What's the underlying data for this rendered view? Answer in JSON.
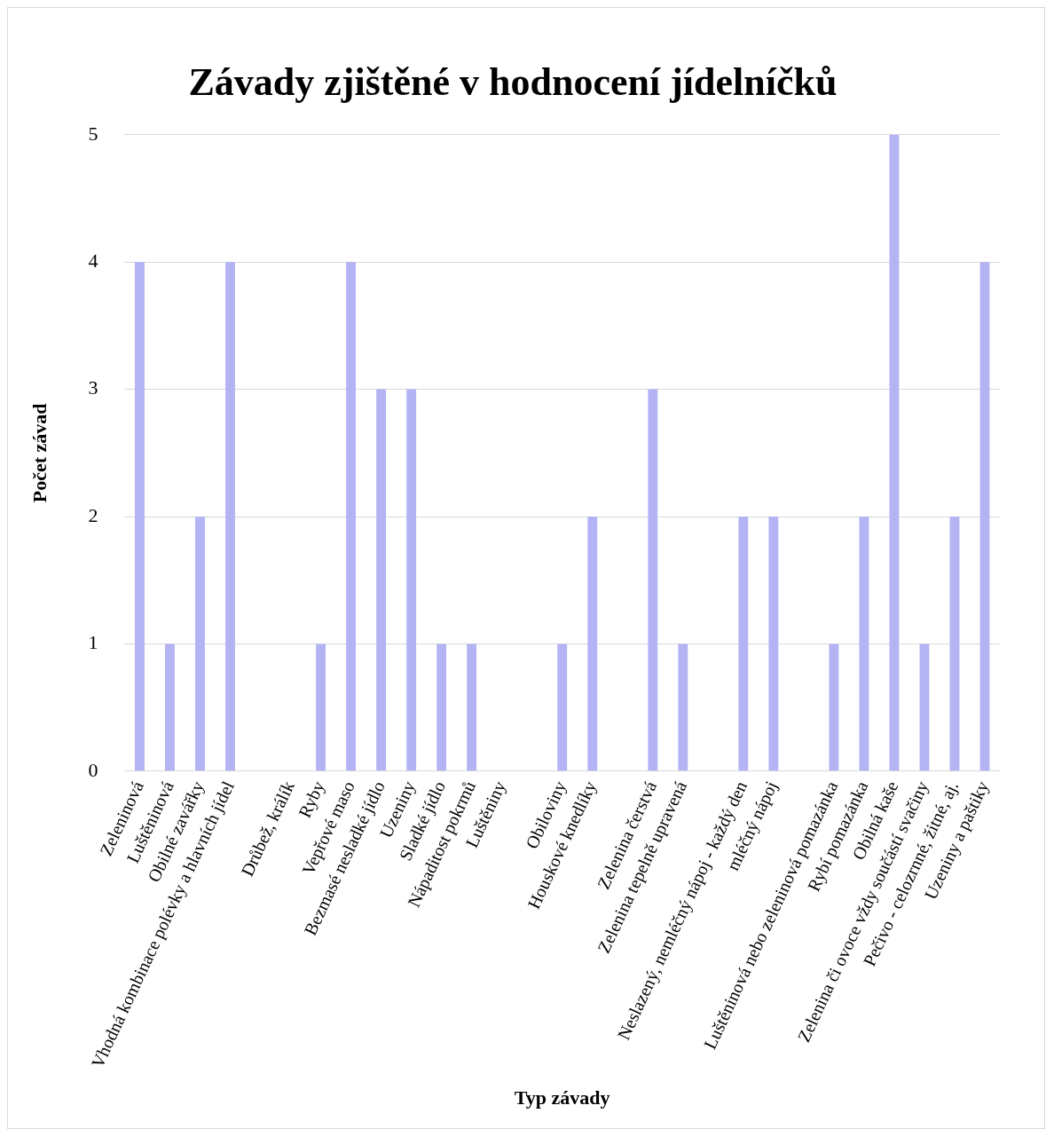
{
  "chart_data": {
    "type": "bar",
    "title": "Závady zjištěné v hodnocení jídelníčků",
    "xlabel": "Typ závady",
    "ylabel": "Počet závad",
    "categories": [
      "Zeleninová",
      "Luštěninová",
      "Obilné zavářky",
      "Vhodná kombinace polévky a hlavních jídel",
      null,
      "Drůbež, králík",
      "Ryby",
      "Vepřové maso",
      "Bezmasé nesladké jídlo",
      "Uzeniny",
      "Sladké jídlo",
      "Nápaditost pokrmů",
      "Luštěniny",
      null,
      "Obiloviny",
      "Houskové knedlíky",
      null,
      "Zelenina čerstvá",
      "Zelenina tepelně upravená",
      null,
      "Neslazený, nemléčný nápoj - každý den",
      "mléčný nápoj",
      null,
      "Luštěninová nebo zeleninová pomazánka",
      "Rybí pomazánka",
      "Obilná kaše",
      "Zelenina či ovoce vždy součástí svačiny",
      "Pečivo - celozrnné, žitné, aj.",
      "Uzeniny a paštiky"
    ],
    "values": [
      4,
      1,
      2,
      4,
      null,
      0,
      1,
      4,
      3,
      3,
      1,
      1,
      0,
      null,
      1,
      2,
      null,
      3,
      1,
      null,
      2,
      2,
      null,
      1,
      2,
      5,
      1,
      2,
      4
    ],
    "color": "#b4b4f5",
    "ylim": [
      0,
      5
    ],
    "yticks": [
      0,
      1,
      2,
      3,
      4,
      5
    ],
    "grid": "y",
    "legend": false
  }
}
